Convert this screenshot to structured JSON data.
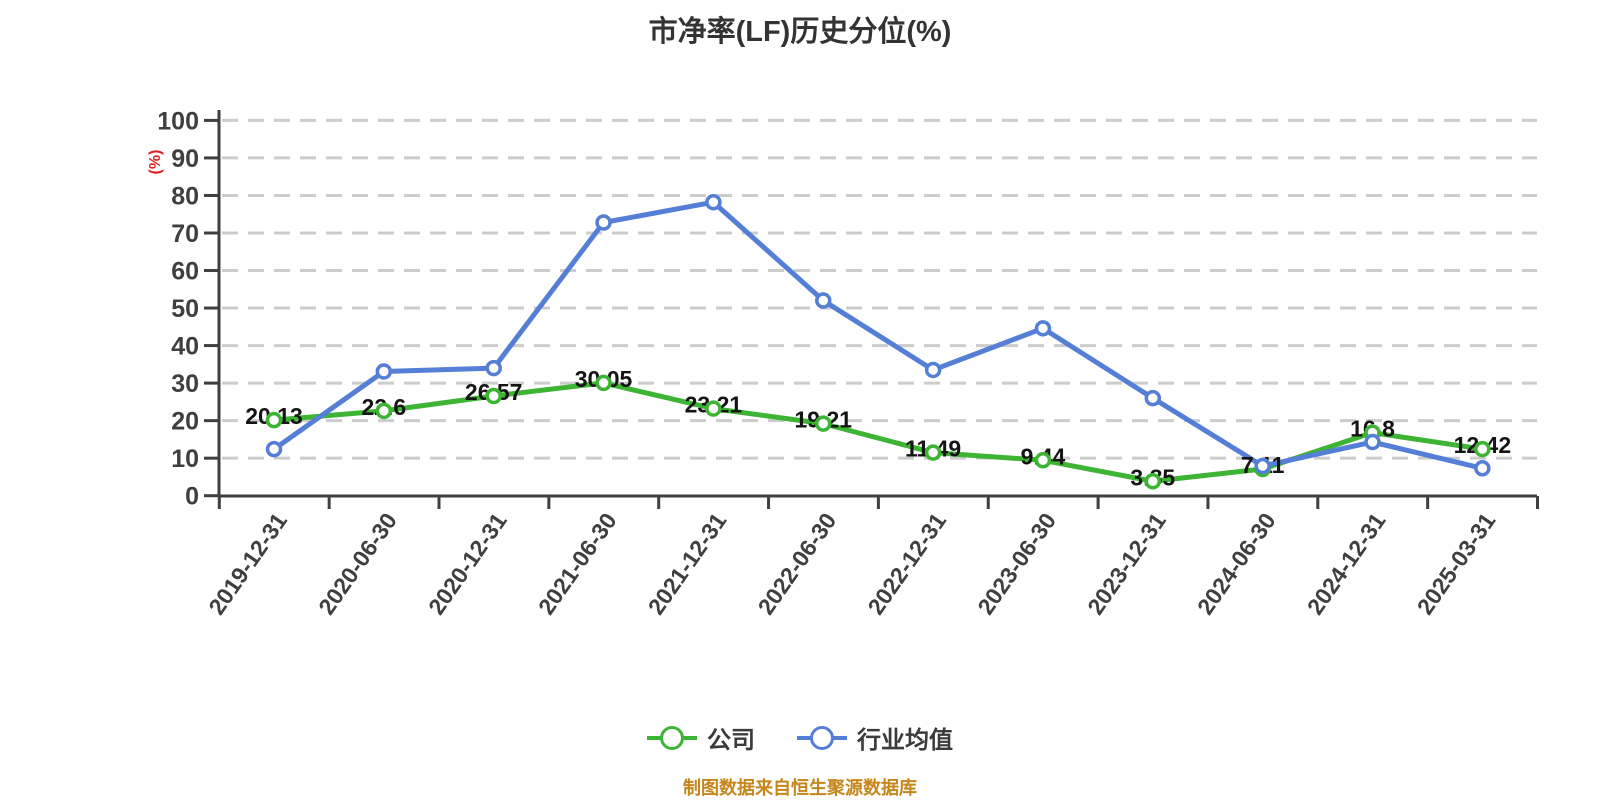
{
  "title": "市净率(LF)历史分位(%)",
  "y_axis_unit": "(%)",
  "footer": "制图数据来自恒生聚源数据库",
  "colors": {
    "company": "#3eb434",
    "industry": "#557fd6",
    "grid": "#cccccc",
    "axis": "#3f3f3f",
    "data_label": "#141414",
    "unit_label": "#e02020",
    "footer_text": "#c5861a",
    "background": "#ffffff"
  },
  "chart_data": {
    "type": "line",
    "title": "市净率(LF)历史分位(%)",
    "xlabel": "",
    "ylabel": "(%)",
    "ylim": [
      0,
      100
    ],
    "y_tick_step": 10,
    "grid": "horizontal dashed",
    "legend_position": "bottom",
    "x_label_rotation": -55,
    "categories": [
      "2019-12-31",
      "2020-06-30",
      "2020-12-31",
      "2021-06-30",
      "2021-12-31",
      "2022-06-30",
      "2022-12-31",
      "2023-06-30",
      "2023-12-31",
      "2024-06-30",
      "2024-12-31",
      "2025-03-31"
    ],
    "series": [
      {
        "name": "公司",
        "color": "#3eb434",
        "marker": "white circle with green ring",
        "values": [
          20.13,
          22.6,
          26.57,
          30.05,
          23.21,
          19.21,
          11.49,
          9.44,
          3.85,
          7.11,
          16.8,
          12.42
        ],
        "labels": [
          "20.13",
          "22.6",
          "26.57",
          "30.05",
          "23.21",
          "19.21",
          "11.49",
          "9.44",
          "3.85",
          "7.11",
          "16.8",
          "12.42"
        ],
        "labels_shown": true
      },
      {
        "name": "行业均值",
        "color": "#557fd6",
        "marker": "white circle with blue ring",
        "values": [
          12.4,
          33.1,
          34.0,
          72.8,
          78.2,
          52.0,
          33.5,
          44.6,
          26.0,
          7.9,
          14.3,
          7.3
        ],
        "labels_shown": false
      }
    ]
  }
}
